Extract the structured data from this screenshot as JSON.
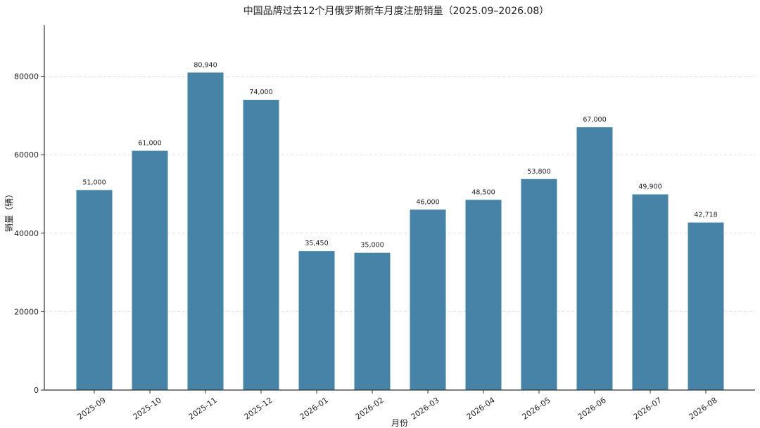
{
  "chart_data": {
    "type": "bar",
    "title": "中国品牌过去12个月俄罗斯新车月度注册销量（2025.09–2026.08）",
    "xlabel": "月份",
    "ylabel": "销量（辆）",
    "categories": [
      "2025-09",
      "2025-10",
      "2025-11",
      "2025-12",
      "2026-01",
      "2026-02",
      "2026-03",
      "2026-04",
      "2026-05",
      "2026-06",
      "2026-07",
      "2026-08"
    ],
    "values": [
      51000,
      61000,
      80940,
      74000,
      35450,
      35000,
      46000,
      48500,
      53800,
      67000,
      49900,
      42718
    ],
    "value_labels": [
      "51,000",
      "61,000",
      "80,940",
      "74,000",
      "35,450",
      "35,000",
      "46,000",
      "48,500",
      "53,800",
      "67,000",
      "49,900",
      "42,718"
    ],
    "ylim": [
      0,
      93000
    ],
    "yticks": [
      0,
      20000,
      40000,
      60000,
      80000
    ],
    "ytick_labels": [
      "0",
      "20000",
      "40000",
      "60000",
      "80000"
    ],
    "grid": true,
    "legend": "none",
    "bar_color": "#4683a6"
  }
}
